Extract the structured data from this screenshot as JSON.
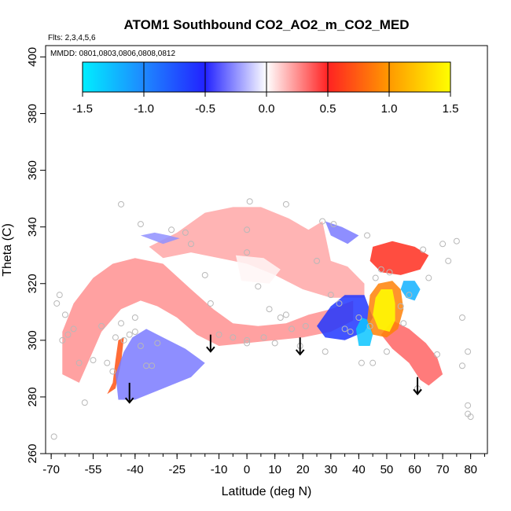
{
  "chart_data": {
    "type": "heatmap",
    "title": "ATOM1 Southbound CO2_AO2_m_CO2_MED",
    "flights_label": "Flts: 2,3,4,5,6",
    "dates_label": "MMDD: 0801,0803,0806,0808,0812",
    "xlabel": "Latitude (deg N)",
    "ylabel": "Theta (C)",
    "xlim": [
      -72,
      86
    ],
    "ylim": [
      260,
      404
    ],
    "xticks": [
      -70,
      -55,
      -40,
      -25,
      -10,
      0,
      10,
      20,
      30,
      40,
      50,
      60,
      70,
      80
    ],
    "xtick_labels": [
      "-70",
      "-55",
      "-40",
      "-25",
      "-10",
      "0",
      "10",
      "20",
      "30",
      "40",
      "50",
      "60",
      "70",
      "80"
    ],
    "yticks": [
      260,
      280,
      300,
      320,
      340,
      360,
      380,
      400
    ],
    "ytick_labels": [
      "260",
      "280",
      "300",
      "320",
      "340",
      "360",
      "380",
      "400"
    ],
    "colorbar": {
      "range": [
        -1.5,
        1.5
      ],
      "ticks": [
        -1.5,
        -1.0,
        -0.5,
        0.0,
        0.5,
        1.0,
        1.5
      ],
      "tick_labels": [
        "-1.5",
        "-1.0",
        "-0.5",
        "0.0",
        "0.5",
        "1.0",
        "1.5"
      ],
      "stops": [
        {
          "v": -1.5,
          "color": "#00eeff"
        },
        {
          "v": -1.0,
          "color": "#1e88ff"
        },
        {
          "v": -0.5,
          "color": "#2222ff"
        },
        {
          "v": 0.0,
          "color": "#ffffff"
        },
        {
          "v": 0.5,
          "color": "#ff2222"
        },
        {
          "v": 1.0,
          "color": "#ff9900"
        },
        {
          "v": 1.5,
          "color": "#ffff00"
        }
      ]
    },
    "regions": [
      {
        "name": "southern-hemisphere-red-band",
        "value": 0.25,
        "points": [
          [
            -66,
            288
          ],
          [
            -66,
            303
          ],
          [
            -62,
            313
          ],
          [
            -55,
            322
          ],
          [
            -48,
            327
          ],
          [
            -40,
            329
          ],
          [
            -30,
            327
          ],
          [
            -20,
            318
          ],
          [
            -12,
            311
          ],
          [
            -5,
            306
          ],
          [
            4,
            305
          ],
          [
            14,
            306
          ],
          [
            22,
            309
          ],
          [
            30,
            311
          ],
          [
            38,
            314
          ],
          [
            38,
            307
          ],
          [
            30,
            303
          ],
          [
            20,
            301
          ],
          [
            10,
            300
          ],
          [
            0,
            299
          ],
          [
            -10,
            298
          ],
          [
            -18,
            302
          ],
          [
            -25,
            308
          ],
          [
            -32,
            312
          ],
          [
            -38,
            314
          ],
          [
            -45,
            311
          ],
          [
            -52,
            303
          ],
          [
            -56,
            294
          ],
          [
            -60,
            285
          ]
        ]
      },
      {
        "name": "upper-red-band",
        "value": 0.2,
        "points": [
          [
            -35,
            333
          ],
          [
            -25,
            338
          ],
          [
            -15,
            345
          ],
          [
            -5,
            347
          ],
          [
            5,
            347
          ],
          [
            15,
            343
          ],
          [
            22,
            339
          ],
          [
            27,
            342
          ],
          [
            30,
            328
          ],
          [
            36,
            326
          ],
          [
            42,
            320
          ],
          [
            42,
            315
          ],
          [
            30,
            315
          ],
          [
            20,
            318
          ],
          [
            10,
            323
          ],
          [
            0,
            327
          ],
          [
            -10,
            329
          ],
          [
            -20,
            331
          ],
          [
            -30,
            329
          ]
        ]
      },
      {
        "name": "tropical-white-gap",
        "value": 0.02,
        "points": [
          [
            -4,
            330
          ],
          [
            6,
            329
          ],
          [
            12,
            325
          ],
          [
            8,
            320
          ],
          [
            -2,
            321
          ]
        ]
      },
      {
        "name": "left-narrow-red-column",
        "value": 0.7,
        "points": [
          [
            -50,
            281
          ],
          [
            -48,
            285
          ],
          [
            -47,
            293
          ],
          [
            -46,
            300
          ],
          [
            -44,
            301
          ],
          [
            -45,
            292
          ],
          [
            -47,
            283
          ]
        ]
      },
      {
        "name": "southern-blue-patch",
        "value": -0.3,
        "points": [
          [
            -44,
            296
          ],
          [
            -41,
            301
          ],
          [
            -36,
            304
          ],
          [
            -30,
            301
          ],
          [
            -22,
            297
          ],
          [
            -15,
            292
          ],
          [
            -20,
            287
          ],
          [
            -30,
            283
          ],
          [
            -40,
            279
          ],
          [
            -46,
            279
          ],
          [
            -47,
            288
          ]
        ]
      },
      {
        "name": "upper-blue-patch",
        "value": -0.25,
        "points": [
          [
            -38,
            337
          ],
          [
            -33,
            338
          ],
          [
            -28,
            337
          ],
          [
            -24,
            336
          ],
          [
            -30,
            334
          ]
        ]
      },
      {
        "name": "north-upper-blue-fringe",
        "value": -0.3,
        "points": [
          [
            28,
            342
          ],
          [
            34,
            340
          ],
          [
            40,
            337
          ],
          [
            36,
            334
          ],
          [
            30,
            337
          ]
        ]
      },
      {
        "name": "mid-blue-patch",
        "value": -0.6,
        "points": [
          [
            25,
            305
          ],
          [
            30,
            312
          ],
          [
            35,
            316
          ],
          [
            42,
            316
          ],
          [
            45,
            308
          ],
          [
            42,
            303
          ],
          [
            35,
            300
          ],
          [
            28,
            301
          ]
        ]
      },
      {
        "name": "north-red-upper-band",
        "value": 0.55,
        "points": [
          [
            45,
            333
          ],
          [
            52,
            335
          ],
          [
            60,
            333
          ],
          [
            65,
            330
          ],
          [
            62,
            325
          ],
          [
            55,
            323
          ],
          [
            48,
            324
          ],
          [
            44,
            328
          ]
        ]
      },
      {
        "name": "north-red-lower-band",
        "value": 0.35,
        "points": [
          [
            48,
            302
          ],
          [
            52,
            297
          ],
          [
            58,
            292
          ],
          [
            62,
            286
          ],
          [
            65,
            284
          ],
          [
            70,
            288
          ],
          [
            68,
            294
          ],
          [
            64,
            299
          ],
          [
            58,
            304
          ],
          [
            52,
            307
          ]
        ]
      },
      {
        "name": "deep-blue-lower-spot",
        "value": -1.3,
        "points": [
          [
            40,
            298
          ],
          [
            44,
            298
          ],
          [
            45,
            302
          ],
          [
            44,
            307
          ],
          [
            41,
            308
          ],
          [
            39,
            304
          ]
        ]
      },
      {
        "name": "deep-blue-upper-spot",
        "value": -1.2,
        "points": [
          [
            56,
            321
          ],
          [
            60,
            321
          ],
          [
            62,
            318
          ],
          [
            60,
            314
          ],
          [
            57,
            315
          ],
          [
            55,
            318
          ]
        ]
      },
      {
        "name": "hotspot-outer",
        "value": 0.9,
        "points": [
          [
            44,
            316
          ],
          [
            47,
            320
          ],
          [
            52,
            321
          ],
          [
            55,
            318
          ],
          [
            56,
            311
          ],
          [
            54,
            304
          ],
          [
            50,
            301
          ],
          [
            45,
            302
          ],
          [
            43,
            307
          ]
        ]
      },
      {
        "name": "hotspot-core",
        "value": 1.5,
        "points": [
          [
            46,
            315
          ],
          [
            48,
            318
          ],
          [
            52,
            318
          ],
          [
            53,
            313
          ],
          [
            53,
            307
          ],
          [
            51,
            303
          ],
          [
            47,
            304
          ],
          [
            45,
            309
          ]
        ]
      }
    ],
    "observations": [
      [
        -69,
        266
      ],
      [
        -68,
        313
      ],
      [
        -67,
        316
      ],
      [
        -65,
        309
      ],
      [
        -64,
        302
      ],
      [
        -62,
        304
      ],
      [
        -60,
        292
      ],
      [
        -58,
        278
      ],
      [
        -55,
        293
      ],
      [
        -52,
        305
      ],
      [
        -50,
        292
      ],
      [
        -48,
        289
      ],
      [
        -47,
        301
      ],
      [
        -45,
        306
      ],
      [
        -44,
        300
      ],
      [
        -42,
        302
      ],
      [
        -40,
        303
      ],
      [
        -38,
        298
      ],
      [
        -36,
        291
      ],
      [
        -34,
        291
      ],
      [
        -32,
        299
      ],
      [
        -27,
        339
      ],
      [
        -22,
        338
      ],
      [
        -20,
        334
      ],
      [
        -15,
        323
      ],
      [
        -13,
        313
      ],
      [
        -10,
        302
      ],
      [
        -5,
        301
      ],
      [
        0,
        300
      ],
      [
        0,
        299
      ],
      [
        0,
        339
      ],
      [
        0,
        331
      ],
      [
        1,
        349
      ],
      [
        4,
        319
      ],
      [
        6,
        301
      ],
      [
        8,
        311
      ],
      [
        10,
        299
      ],
      [
        12,
        308
      ],
      [
        14,
        309
      ],
      [
        16,
        304
      ],
      [
        19,
        298
      ],
      [
        21,
        305
      ],
      [
        25,
        328
      ],
      [
        27,
        342
      ],
      [
        28,
        296
      ],
      [
        30,
        316
      ],
      [
        31,
        341
      ],
      [
        33,
        313
      ],
      [
        35,
        304
      ],
      [
        37,
        303
      ],
      [
        40,
        308
      ],
      [
        41,
        292
      ],
      [
        43,
        337
      ],
      [
        44,
        305
      ],
      [
        46,
        322
      ],
      [
        48,
        325
      ],
      [
        51,
        324
      ],
      [
        55,
        312
      ],
      [
        56,
        306
      ],
      [
        58,
        316
      ],
      [
        61,
        283
      ],
      [
        63,
        332
      ],
      [
        65,
        322
      ],
      [
        68,
        295
      ],
      [
        70,
        334
      ],
      [
        72,
        328
      ],
      [
        75,
        335
      ],
      [
        77,
        308
      ],
      [
        77,
        291
      ],
      [
        79,
        296
      ],
      [
        79,
        277
      ],
      [
        79,
        274
      ],
      [
        80,
        273
      ],
      [
        -45,
        348
      ],
      [
        -38,
        341
      ],
      [
        14,
        348
      ],
      [
        -40,
        308
      ],
      [
        45,
        292
      ],
      [
        50,
        296
      ],
      [
        -66,
        300
      ]
    ],
    "arrows": [
      {
        "x": -42,
        "y_from": 285,
        "y_to": 278
      },
      {
        "x": -13,
        "y_from": 302,
        "y_to": 296
      },
      {
        "x": 19,
        "y_from": 301,
        "y_to": 295
      },
      {
        "x": 61,
        "y_from": 287,
        "y_to": 281
      }
    ]
  }
}
